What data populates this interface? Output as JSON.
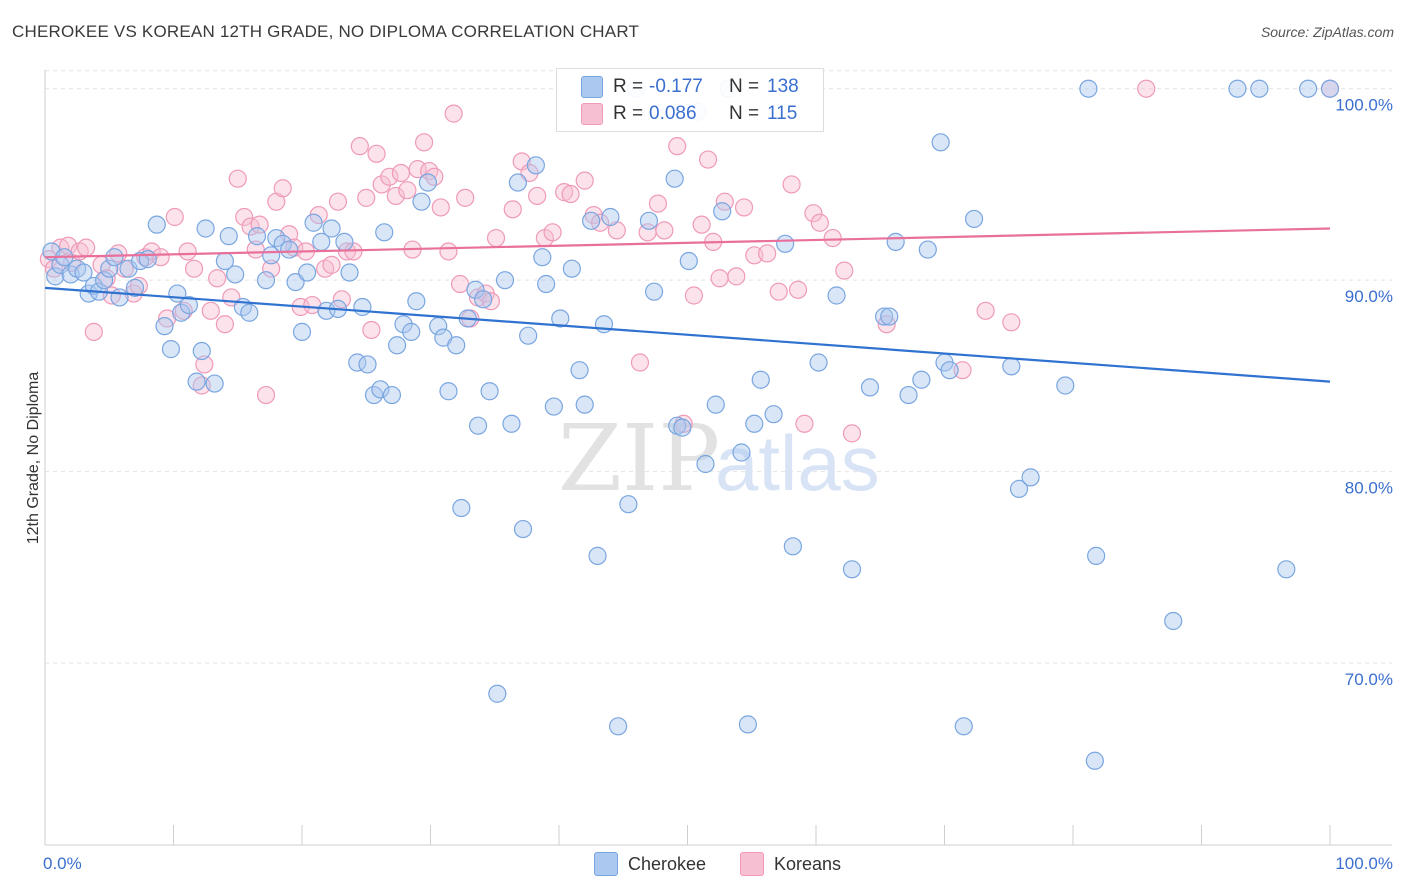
{
  "title": "CHEROKEE VS KOREAN 12TH GRADE, NO DIPLOMA CORRELATION CHART",
  "source": "Source: ZipAtlas.com",
  "watermark": {
    "zip": "ZIP",
    "atlas": "atlas"
  },
  "legend": {
    "rows": [
      {
        "r_label": "R =",
        "r_value": "-0.177",
        "n_label": "N =",
        "n_value": "138"
      },
      {
        "r_label": "R =",
        "r_value": "0.086",
        "n_label": "N =",
        "n_value": "115"
      }
    ]
  },
  "colors": {
    "cherokee_fill": "#aac8f0",
    "cherokee_stroke": "#7aa6e0",
    "cherokee_line": "#2f72d0",
    "koreans_fill": "#f7bfd2",
    "koreans_stroke": "#ef9ab8",
    "koreans_line": "#e8709a",
    "axis_text": "#3a6fd0"
  },
  "chart_data": {
    "type": "scatter",
    "title": "CHEROKEE VS KOREAN 12TH GRADE, NO DIPLOMA CORRELATION CHART",
    "xlabel": "",
    "ylabel": "12th Grade, No Diploma",
    "xlim": [
      0,
      100
    ],
    "ylim": [
      60.5,
      101.5
    ],
    "x_tick_labels": [
      "0.0%",
      "100.0%"
    ],
    "y_ticks": [
      70,
      80,
      90,
      100
    ],
    "y_tick_labels": [
      "70.0%",
      "80.0%",
      "90.0%",
      "100.0%"
    ],
    "grid": true,
    "legend_position": "bottom-center",
    "series": [
      {
        "name": "Cherokee",
        "r": -0.177,
        "n": 138,
        "trend": {
          "x": [
            0,
            100
          ],
          "y": [
            89.6,
            84.7
          ]
        },
        "points": [
          [
            0.5,
            91.5
          ],
          [
            0.8,
            90.2
          ],
          [
            1.2,
            90.8
          ],
          [
            1.5,
            91.2
          ],
          [
            2,
            90.3
          ],
          [
            2.5,
            90.6
          ],
          [
            3,
            90.4
          ],
          [
            3.4,
            89.3
          ],
          [
            3.8,
            89.7
          ],
          [
            4.2,
            89.4
          ],
          [
            4.6,
            90.0
          ],
          [
            5,
            90.6
          ],
          [
            5.4,
            91.2
          ],
          [
            5.8,
            89.1
          ],
          [
            6.5,
            90.6
          ],
          [
            7,
            89.6
          ],
          [
            7.4,
            91.0
          ],
          [
            8,
            91.1
          ],
          [
            8.7,
            92.9
          ],
          [
            9.3,
            87.6
          ],
          [
            9.8,
            86.4
          ],
          [
            10.3,
            89.3
          ],
          [
            10.6,
            88.3
          ],
          [
            11.2,
            88.7
          ],
          [
            11.8,
            84.7
          ],
          [
            12.2,
            86.3
          ],
          [
            12.5,
            92.7
          ],
          [
            13.2,
            84.6
          ],
          [
            14,
            91.0
          ],
          [
            14.3,
            92.3
          ],
          [
            14.8,
            90.3
          ],
          [
            15.4,
            88.6
          ],
          [
            15.9,
            88.3
          ],
          [
            16.5,
            92.3
          ],
          [
            17.2,
            90.0
          ],
          [
            17.6,
            91.3
          ],
          [
            18.0,
            92.2
          ],
          [
            18.5,
            91.9
          ],
          [
            19,
            91.6
          ],
          [
            19.5,
            89.9
          ],
          [
            20,
            87.3
          ],
          [
            20.4,
            90.4
          ],
          [
            20.9,
            93.0
          ],
          [
            21.5,
            92.0
          ],
          [
            21.9,
            88.4
          ],
          [
            22.3,
            92.7
          ],
          [
            22.8,
            88.5
          ],
          [
            23.3,
            92.0
          ],
          [
            23.7,
            90.4
          ],
          [
            24.3,
            85.7
          ],
          [
            24.7,
            88.6
          ],
          [
            25.1,
            85.6
          ],
          [
            25.6,
            84.0
          ],
          [
            26.1,
            84.3
          ],
          [
            26.4,
            92.5
          ],
          [
            27,
            84.0
          ],
          [
            27.4,
            86.6
          ],
          [
            27.9,
            87.7
          ],
          [
            28.5,
            87.3
          ],
          [
            28.9,
            88.9
          ],
          [
            29.3,
            94.1
          ],
          [
            29.8,
            95.1
          ],
          [
            30.6,
            87.6
          ],
          [
            31.0,
            87.0
          ],
          [
            31.4,
            84.2
          ],
          [
            32.0,
            86.6
          ],
          [
            32.4,
            78.1
          ],
          [
            32.9,
            88.0
          ],
          [
            33.5,
            89.5
          ],
          [
            33.7,
            82.4
          ],
          [
            34.1,
            89.0
          ],
          [
            34.6,
            84.2
          ],
          [
            35.2,
            68.4
          ],
          [
            35.8,
            90.0
          ],
          [
            36.3,
            82.5
          ],
          [
            36.8,
            95.1
          ],
          [
            37.2,
            77.0
          ],
          [
            37.6,
            87.1
          ],
          [
            38.2,
            96.0
          ],
          [
            38.7,
            91.2
          ],
          [
            39,
            89.8
          ],
          [
            39.6,
            83.4
          ],
          [
            40.1,
            88.0
          ],
          [
            41.0,
            90.6
          ],
          [
            41.6,
            85.3
          ],
          [
            42.0,
            83.5
          ],
          [
            42.5,
            93.1
          ],
          [
            43.0,
            75.6
          ],
          [
            43.5,
            87.7
          ],
          [
            44.0,
            93.3
          ],
          [
            44.6,
            66.7
          ],
          [
            45.4,
            78.3
          ],
          [
            46,
            100.0
          ],
          [
            47,
            93.1
          ],
          [
            47.4,
            89.4
          ],
          [
            49,
            95.3
          ],
          [
            49.2,
            82.4
          ],
          [
            49.6,
            82.3
          ],
          [
            50.1,
            91.0
          ],
          [
            50.8,
            98.8
          ],
          [
            51.4,
            80.4
          ],
          [
            52.2,
            83.5
          ],
          [
            52.7,
            93.6
          ],
          [
            53.2,
            100.0
          ],
          [
            54.2,
            81.0
          ],
          [
            54.7,
            66.8
          ],
          [
            55.2,
            82.5
          ],
          [
            55.7,
            84.8
          ],
          [
            56.7,
            83.0
          ],
          [
            57.6,
            91.9
          ],
          [
            58.2,
            76.1
          ],
          [
            60.2,
            85.7
          ],
          [
            61.6,
            89.2
          ],
          [
            62.8,
            74.9
          ],
          [
            64.2,
            84.4
          ],
          [
            65.3,
            88.1
          ],
          [
            65.7,
            88.1
          ],
          [
            66.2,
            92.0
          ],
          [
            67.2,
            84.0
          ],
          [
            68.2,
            84.8
          ],
          [
            68.7,
            91.6
          ],
          [
            69.7,
            97.2
          ],
          [
            70,
            85.7
          ],
          [
            70.4,
            85.3
          ],
          [
            71.5,
            66.7
          ],
          [
            72.3,
            93.2
          ],
          [
            75.2,
            85.5
          ],
          [
            75.8,
            79.1
          ],
          [
            76.7,
            79.7
          ],
          [
            79.4,
            84.5
          ],
          [
            81.2,
            100.0
          ],
          [
            81.7,
            64.9
          ],
          [
            81.8,
            75.6
          ],
          [
            87.8,
            72.2
          ],
          [
            92.8,
            100.0
          ],
          [
            94.5,
            100.0
          ],
          [
            96.6,
            74.9
          ],
          [
            98.3,
            100.0
          ],
          [
            100,
            100.0
          ]
        ]
      },
      {
        "name": "Koreans",
        "r": 0.086,
        "n": 115,
        "trend": {
          "x": [
            0,
            100
          ],
          "y": [
            91.2,
            92.7
          ]
        },
        "points": [
          [
            0.3,
            91.1
          ],
          [
            0.7,
            90.6
          ],
          [
            1.2,
            91.7
          ],
          [
            1.8,
            91.8
          ],
          [
            2.1,
            90.9
          ],
          [
            2.7,
            91.5
          ],
          [
            3.2,
            91.7
          ],
          [
            3.8,
            87.3
          ],
          [
            4.4,
            90.8
          ],
          [
            4.8,
            90.1
          ],
          [
            5.2,
            89.2
          ],
          [
            5.7,
            91.4
          ],
          [
            6.2,
            90.6
          ],
          [
            6.9,
            89.3
          ],
          [
            7.3,
            89.7
          ],
          [
            7.8,
            91.2
          ],
          [
            8.3,
            91.5
          ],
          [
            9,
            91.2
          ],
          [
            9.5,
            88.0
          ],
          [
            10.1,
            93.3
          ],
          [
            10.8,
            88.4
          ],
          [
            11.1,
            91.5
          ],
          [
            11.6,
            90.6
          ],
          [
            12.2,
            84.5
          ],
          [
            12.4,
            85.6
          ],
          [
            12.9,
            88.4
          ],
          [
            13.4,
            90.1
          ],
          [
            14,
            87.7
          ],
          [
            14.5,
            89.1
          ],
          [
            15,
            95.3
          ],
          [
            15.5,
            93.3
          ],
          [
            16,
            92.8
          ],
          [
            16.4,
            91.6
          ],
          [
            16.7,
            92.9
          ],
          [
            17.2,
            84.0
          ],
          [
            17.6,
            90.6
          ],
          [
            18.0,
            94.1
          ],
          [
            18.5,
            94.8
          ],
          [
            19,
            92.4
          ],
          [
            19.4,
            91.7
          ],
          [
            19.9,
            88.6
          ],
          [
            20.3,
            91.5
          ],
          [
            20.8,
            88.7
          ],
          [
            21.3,
            93.4
          ],
          [
            21.8,
            90.6
          ],
          [
            22.3,
            90.8
          ],
          [
            22.8,
            94.1
          ],
          [
            23.1,
            89.0
          ],
          [
            23.5,
            91.5
          ],
          [
            24,
            91.5
          ],
          [
            24.5,
            97.0
          ],
          [
            25,
            94.3
          ],
          [
            25.4,
            87.4
          ],
          [
            25.8,
            96.6
          ],
          [
            26.2,
            95.0
          ],
          [
            26.8,
            95.4
          ],
          [
            27.3,
            94.4
          ],
          [
            27.7,
            95.6
          ],
          [
            28.2,
            94.7
          ],
          [
            28.6,
            91.6
          ],
          [
            29,
            95.8
          ],
          [
            29.5,
            97.2
          ],
          [
            29.9,
            95.7
          ],
          [
            30.3,
            95.4
          ],
          [
            30.8,
            93.8
          ],
          [
            31.4,
            91.5
          ],
          [
            31.8,
            98.7
          ],
          [
            32.3,
            89.8
          ],
          [
            32.7,
            94.3
          ],
          [
            33.1,
            88.0
          ],
          [
            33.7,
            89.1
          ],
          [
            34.3,
            89.3
          ],
          [
            34.7,
            88.9
          ],
          [
            35.1,
            92.2
          ],
          [
            36.4,
            93.7
          ],
          [
            37.1,
            96.2
          ],
          [
            37.7,
            95.6
          ],
          [
            38.3,
            94.4
          ],
          [
            38.9,
            92.2
          ],
          [
            39.5,
            92.5
          ],
          [
            40.4,
            94.6
          ],
          [
            40.9,
            94.5
          ],
          [
            42,
            95.2
          ],
          [
            42.7,
            93.4
          ],
          [
            43.2,
            93.0
          ],
          [
            44.5,
            92.6
          ],
          [
            46.3,
            85.7
          ],
          [
            46.9,
            92.5
          ],
          [
            47.7,
            94.0
          ],
          [
            48.2,
            92.6
          ],
          [
            49.2,
            97.0
          ],
          [
            49.7,
            82.5
          ],
          [
            50.5,
            89.2
          ],
          [
            51.1,
            92.9
          ],
          [
            51.6,
            96.3
          ],
          [
            52,
            92.0
          ],
          [
            52.5,
            90.1
          ],
          [
            52.9,
            94.1
          ],
          [
            53.8,
            90.2
          ],
          [
            54.4,
            93.8
          ],
          [
            55.2,
            91.3
          ],
          [
            56.2,
            91.4
          ],
          [
            57.1,
            89.4
          ],
          [
            58.1,
            95.0
          ],
          [
            58.6,
            89.5
          ],
          [
            59.1,
            82.5
          ],
          [
            59.8,
            93.5
          ],
          [
            60.3,
            93.0
          ],
          [
            61.3,
            92.2
          ],
          [
            62.2,
            90.5
          ],
          [
            62.8,
            82.0
          ],
          [
            65.5,
            87.7
          ],
          [
            71.4,
            85.3
          ],
          [
            73.2,
            88.4
          ],
          [
            75.2,
            87.8
          ],
          [
            85.7,
            100.0
          ],
          [
            100,
            100.0
          ]
        ]
      }
    ]
  },
  "bottom_legend": [
    "Cherokee",
    "Koreans"
  ]
}
